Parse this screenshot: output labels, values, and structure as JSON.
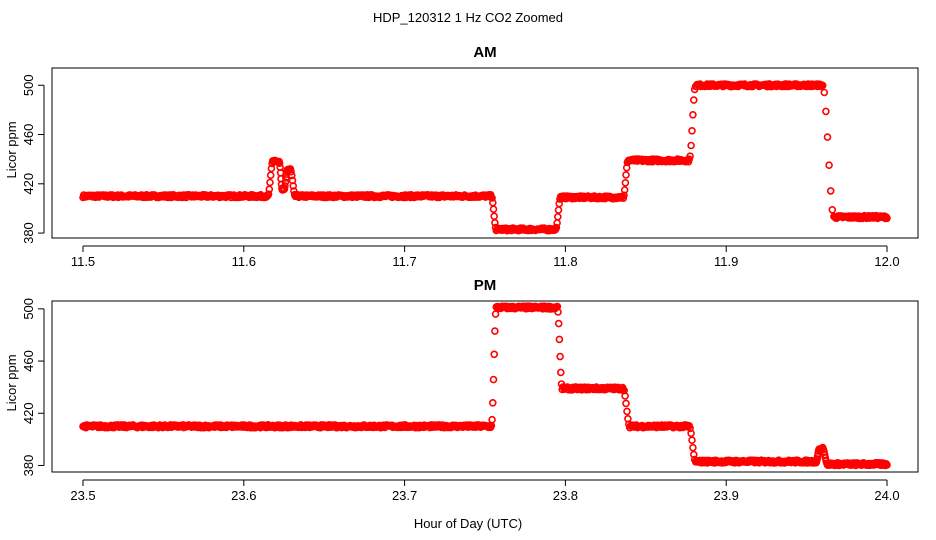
{
  "title": "HDP_120312  1 Hz CO2 Zoomed",
  "xlabel": "Hour of Day (UTC)",
  "colors": {
    "points": "#ff0000",
    "axes": "#000000",
    "background": "#ffffff"
  },
  "chart_data": [
    {
      "type": "scatter",
      "title": "AM",
      "xlabel": "",
      "ylabel": "Licor ppm",
      "xlim": [
        11.5,
        12.0
      ],
      "ylim": [
        376,
        514
      ],
      "xticks": [
        "11.5",
        "11.6",
        "11.7",
        "11.8",
        "11.9",
        "12.0"
      ],
      "yticks": [
        "380",
        "420",
        "460",
        "500"
      ],
      "grid": false,
      "marker": "open circle",
      "segments": [
        {
          "x_start": 11.5,
          "x_end": 11.615,
          "y": 410
        },
        {
          "x_start": 11.618,
          "x_end": 11.622,
          "y": 438,
          "note_peak": true
        },
        {
          "x_start": 11.624,
          "x_end": 11.625,
          "y": 415
        },
        {
          "x_start": 11.627,
          "x_end": 11.629,
          "y": 431
        },
        {
          "x_start": 11.632,
          "x_end": 11.754,
          "y": 410
        },
        {
          "x_start": 11.757,
          "x_end": 11.794,
          "y": 383
        },
        {
          "x_start": 11.797,
          "x_end": 11.836,
          "y": 409
        },
        {
          "x_start": 11.839,
          "x_end": 11.877,
          "y": 439
        },
        {
          "x_start": 11.881,
          "x_end": 11.96,
          "y": 500
        },
        {
          "x_start": 11.967,
          "x_end": 12.0,
          "y": 393
        }
      ]
    },
    {
      "type": "scatter",
      "title": "PM",
      "xlabel": "",
      "ylabel": "Licor ppm",
      "xlim": [
        23.5,
        24.0
      ],
      "ylim": [
        375,
        506
      ],
      "xticks": [
        "23.5",
        "23.6",
        "23.7",
        "23.8",
        "23.9",
        "24.0"
      ],
      "yticks": [
        "380",
        "420",
        "460",
        "500"
      ],
      "grid": false,
      "marker": "open circle",
      "segments": [
        {
          "x_start": 23.5,
          "x_end": 23.754,
          "y": 410
        },
        {
          "x_start": 23.757,
          "x_end": 23.795,
          "y": 501
        },
        {
          "x_start": 23.798,
          "x_end": 23.836,
          "y": 439
        },
        {
          "x_start": 23.84,
          "x_end": 23.877,
          "y": 410
        },
        {
          "x_start": 23.881,
          "x_end": 23.956,
          "y": 383
        },
        {
          "x_start": 23.958,
          "x_end": 23.96,
          "y": 393
        },
        {
          "x_start": 23.963,
          "x_end": 24.0,
          "y": 381
        }
      ]
    }
  ]
}
